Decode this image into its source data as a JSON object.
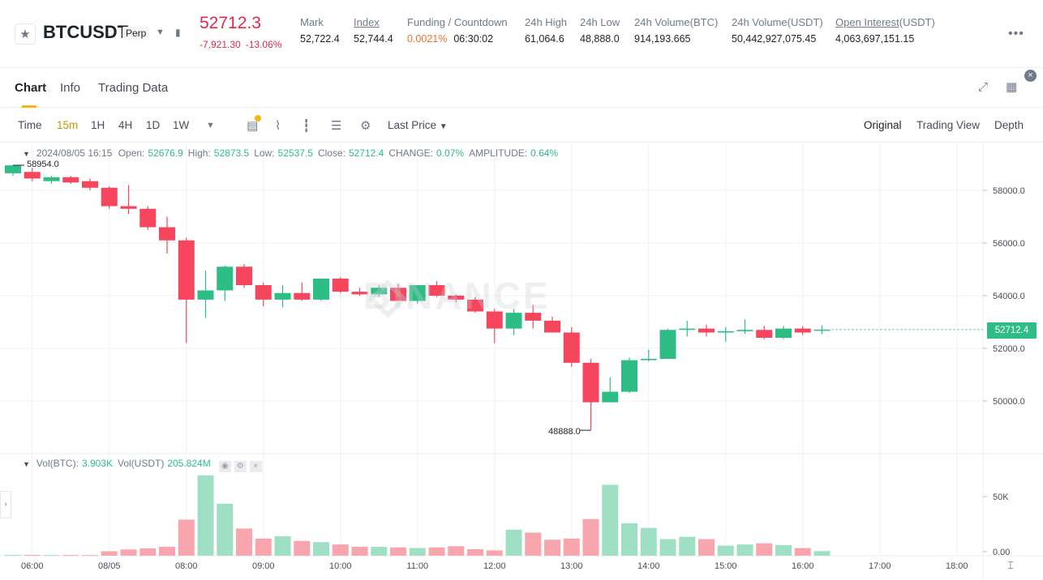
{
  "ticker": {
    "symbol": "BTCUSDT",
    "contract_type": "Perp",
    "last_price": "52712.3",
    "change_abs": "-7,921.30",
    "change_pct": "-13.06%",
    "stats": [
      {
        "label": "Mark",
        "value": "52,722.4",
        "underline": false
      },
      {
        "label": "Index",
        "value": "52,744.4",
        "underline": true
      },
      {
        "label": "Funding / Countdown",
        "value": "",
        "underline": false
      },
      {
        "label": "24h High",
        "value": "61,064.6",
        "underline": false
      },
      {
        "label": "24h Low",
        "value": "48,888.0",
        "underline": false
      },
      {
        "label": "24h Volume(BTC)",
        "value": "914,193.665",
        "underline": false
      },
      {
        "label": "24h Volume(USDT)",
        "value": "50,442,927,075.45",
        "underline": false
      },
      {
        "label": "Open Interest(USDT)",
        "value": "4,063,697,151.15",
        "underline": false
      }
    ],
    "funding_rate": "0.0021%",
    "countdown": "06:30:02",
    "open_interest_link": "Open Interest",
    "open_interest_unit": "(USDT)"
  },
  "tabs": {
    "chart": "Chart",
    "info": "Info",
    "trading_data": "Trading Data"
  },
  "toolbar": {
    "intervals": [
      "Time",
      "15m",
      "1H",
      "4H",
      "1D",
      "1W"
    ],
    "active_interval": "15m",
    "price_type": "Last Price",
    "views": [
      "Original",
      "Trading View",
      "Depth"
    ],
    "active_view": "Original"
  },
  "legend": {
    "datetime": "2024/08/05 16:15",
    "open_label": "Open:",
    "open": "52676.9",
    "high_label": "High:",
    "high": "52873.5",
    "low_label": "Low:",
    "low": "52537.5",
    "close_label": "Close:",
    "close": "52712.4",
    "change_label": "CHANGE:",
    "change": "0.07%",
    "amplitude_label": "AMPLITUDE:",
    "amplitude": "0.64%"
  },
  "volume_legend": {
    "btc_label": "Vol(BTC):",
    "btc": "3.903K",
    "usdt_label": "Vol(USDT)",
    "usdt": "205.824M"
  },
  "watermark": "BINANCE",
  "chart_data": {
    "type": "candlestick",
    "interval": "15m",
    "x": [
      "05:45",
      "06:00",
      "06:15",
      "06:30",
      "06:45",
      "07:00",
      "07:15",
      "07:30",
      "07:45",
      "08:00",
      "08:15",
      "08:30",
      "08:45",
      "09:00",
      "09:15",
      "09:30",
      "09:45",
      "10:00",
      "10:15",
      "10:30",
      "10:45",
      "11:00",
      "11:15",
      "11:30",
      "11:45",
      "12:00",
      "12:15",
      "12:30",
      "12:45",
      "13:00",
      "13:15",
      "13:30",
      "13:45",
      "14:00",
      "14:15",
      "14:30",
      "14:45",
      "15:00",
      "15:15",
      "15:30",
      "15:45",
      "16:00",
      "16:15"
    ],
    "candles": [
      {
        "o": 58650,
        "h": 58954,
        "l": 58550,
        "c": 58950
      },
      {
        "o": 58700,
        "h": 58850,
        "l": 58350,
        "c": 58450
      },
      {
        "o": 58350,
        "h": 58550,
        "l": 58250,
        "c": 58500
      },
      {
        "o": 58500,
        "h": 58550,
        "l": 58250,
        "c": 58300
      },
      {
        "o": 58350,
        "h": 58450,
        "l": 58000,
        "c": 58100
      },
      {
        "o": 58100,
        "h": 58150,
        "l": 57300,
        "c": 57400
      },
      {
        "o": 57400,
        "h": 58200,
        "l": 57100,
        "c": 57300
      },
      {
        "o": 57300,
        "h": 57400,
        "l": 56500,
        "c": 56600
      },
      {
        "o": 56600,
        "h": 57000,
        "l": 55600,
        "c": 56100
      },
      {
        "o": 56100,
        "h": 56200,
        "l": 52200,
        "c": 53850
      },
      {
        "o": 53850,
        "h": 54950,
        "l": 53150,
        "c": 54200
      },
      {
        "o": 54200,
        "h": 55150,
        "l": 53800,
        "c": 55100
      },
      {
        "o": 55100,
        "h": 55200,
        "l": 54300,
        "c": 54400
      },
      {
        "o": 54400,
        "h": 54500,
        "l": 53600,
        "c": 53850
      },
      {
        "o": 53850,
        "h": 54400,
        "l": 53550,
        "c": 54100
      },
      {
        "o": 54100,
        "h": 54500,
        "l": 53800,
        "c": 53850
      },
      {
        "o": 53850,
        "h": 54600,
        "l": 53800,
        "c": 54650
      },
      {
        "o": 54650,
        "h": 54700,
        "l": 54100,
        "c": 54150
      },
      {
        "o": 54150,
        "h": 54300,
        "l": 54000,
        "c": 54050
      },
      {
        "o": 54050,
        "h": 54400,
        "l": 53950,
        "c": 54300
      },
      {
        "o": 54300,
        "h": 54450,
        "l": 53800,
        "c": 53800
      },
      {
        "o": 53800,
        "h": 54400,
        "l": 53700,
        "c": 54400
      },
      {
        "o": 54400,
        "h": 54550,
        "l": 53950,
        "c": 54000
      },
      {
        "o": 54000,
        "h": 54050,
        "l": 53750,
        "c": 53850
      },
      {
        "o": 53850,
        "h": 53950,
        "l": 53350,
        "c": 53400
      },
      {
        "o": 53400,
        "h": 53500,
        "l": 52200,
        "c": 52750
      },
      {
        "o": 52750,
        "h": 53500,
        "l": 52500,
        "c": 53350
      },
      {
        "o": 53350,
        "h": 53650,
        "l": 52750,
        "c": 53050
      },
      {
        "o": 53050,
        "h": 53200,
        "l": 52600,
        "c": 52600
      },
      {
        "o": 52600,
        "h": 52800,
        "l": 51300,
        "c": 51450
      },
      {
        "o": 51450,
        "h": 51600,
        "l": 48888,
        "c": 49950
      },
      {
        "o": 49950,
        "h": 50900,
        "l": 49950,
        "c": 50350
      },
      {
        "o": 50350,
        "h": 51650,
        "l": 50300,
        "c": 51550
      },
      {
        "o": 51550,
        "h": 51950,
        "l": 51500,
        "c": 51600
      },
      {
        "o": 51600,
        "h": 52750,
        "l": 51600,
        "c": 52700
      },
      {
        "o": 52700,
        "h": 53050,
        "l": 52450,
        "c": 52750
      },
      {
        "o": 52750,
        "h": 52900,
        "l": 52450,
        "c": 52600
      },
      {
        "o": 52600,
        "h": 52800,
        "l": 52250,
        "c": 52650
      },
      {
        "o": 52650,
        "h": 53100,
        "l": 52550,
        "c": 52700
      },
      {
        "o": 52700,
        "h": 52850,
        "l": 52350,
        "c": 52400
      },
      {
        "o": 52400,
        "h": 52850,
        "l": 52350,
        "c": 52750
      },
      {
        "o": 52750,
        "h": 52850,
        "l": 52500,
        "c": 52600
      },
      {
        "o": 52677,
        "h": 52874,
        "l": 52538,
        "c": 52712
      }
    ],
    "volume": [
      600,
      700,
      500,
      600,
      500,
      3800,
      5300,
      6200,
      7500,
      30500,
      68000,
      44000,
      23000,
      14500,
      16500,
      12500,
      11500,
      9500,
      7500,
      7500,
      7000,
      6500,
      7000,
      8000,
      5500,
      4500,
      22000,
      19500,
      13500,
      14500,
      31000,
      60000,
      27500,
      23500,
      14000,
      16000,
      14000,
      8500,
      9500,
      10500,
      9000,
      6500,
      3903
    ],
    "price_axis": {
      "ticks": [
        50000,
        52000,
        54000,
        56000,
        58000
      ],
      "labels": [
        "50000.0",
        "52000.0",
        "54000.0",
        "56000.0",
        "58000.0"
      ],
      "range": [
        48000,
        58850
      ]
    },
    "volume_axis": {
      "ticks": [
        0,
        50000
      ],
      "labels": [
        "0.00",
        "50K"
      ],
      "range": [
        0,
        72000
      ]
    },
    "time_axis": {
      "labels": [
        "06:00",
        "08/05",
        "08:00",
        "09:00",
        "10:00",
        "11:00",
        "12:00",
        "13:00",
        "14:00",
        "15:00",
        "16:00",
        "17:00",
        "18:00"
      ]
    },
    "high_marker": "58954.0",
    "low_marker": "48888.0",
    "last_price_tag": "52712.4",
    "colors": {
      "up": "#2ebd85",
      "down": "#f6465d",
      "up_vol": "#9fdfc4",
      "down_vol": "#f8a5ae",
      "grid": "#f0f1f2"
    }
  }
}
